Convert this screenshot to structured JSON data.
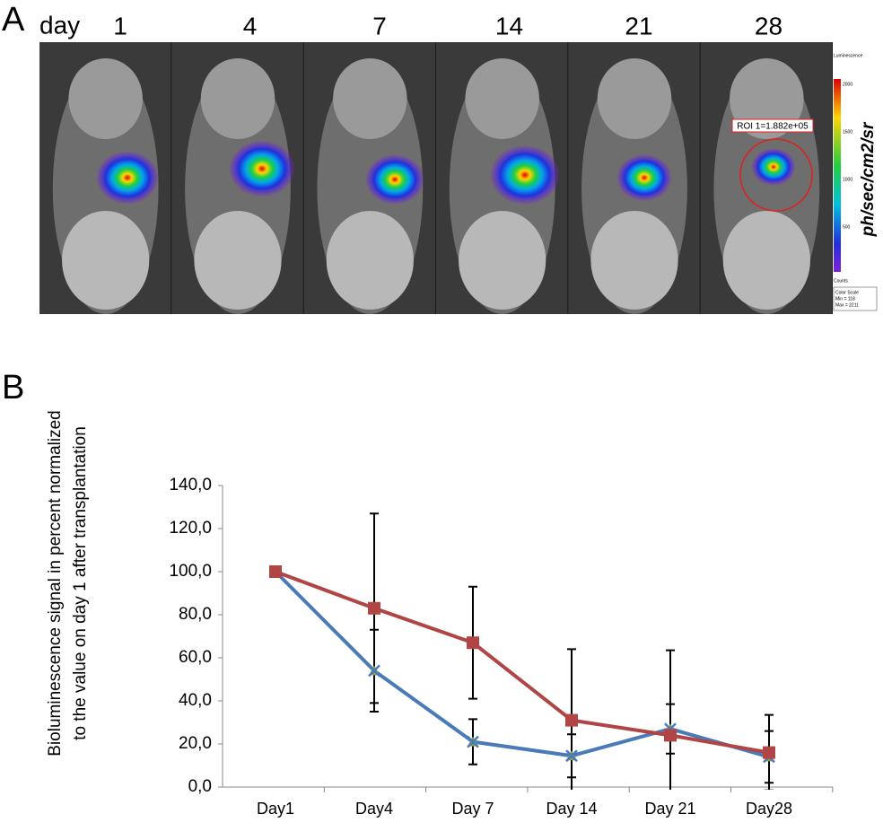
{
  "panel_a": {
    "label": "A",
    "day_label": "day",
    "days": [
      "1",
      "4",
      "7",
      "14",
      "21",
      "28"
    ],
    "roi_label": "ROI 1=1.882e+05",
    "colorbar": {
      "title": "Luminescence",
      "ticks": [
        "2000",
        "1500",
        "1000",
        "500"
      ],
      "units_label": "Counts",
      "unit": "ph/sec/cm2/sr",
      "scale_box": [
        "Color Scale",
        "Min = 118",
        "Max = 2211"
      ]
    }
  },
  "chart_data": {
    "type": "line",
    "panel_label": "B",
    "y_label": [
      "Bioluminescence signal in percent normalized",
      "to the value on day 1 after transplantation"
    ],
    "categories": [
      "Day1",
      "Day4",
      "Day 7",
      "Day 14",
      "Day 21",
      "Day28"
    ],
    "series": [
      {
        "color": "#4a7ab8",
        "marker": "x",
        "values": [
          100,
          54,
          21,
          14.5,
          27,
          14
        ],
        "errors": [
          null,
          19,
          10.5,
          10,
          11.5,
          12
        ]
      },
      {
        "color": "#b04545",
        "marker": "square",
        "values": [
          100,
          83,
          67,
          31,
          24,
          16
        ],
        "errors": [
          null,
          44,
          26,
          33,
          39.5,
          17.5
        ]
      }
    ],
    "ylim": [
      0,
      140
    ],
    "yticks": [
      {
        "value": 0,
        "label": "0,0"
      },
      {
        "value": 20,
        "label": "20,0"
      },
      {
        "value": 40,
        "label": "40,0"
      },
      {
        "value": 60,
        "label": "60,0"
      },
      {
        "value": 80,
        "label": "80,0"
      },
      {
        "value": 100,
        "label": "100,0"
      },
      {
        "value": 120,
        "label": "120,0"
      },
      {
        "value": 140,
        "label": "140,0"
      }
    ]
  }
}
